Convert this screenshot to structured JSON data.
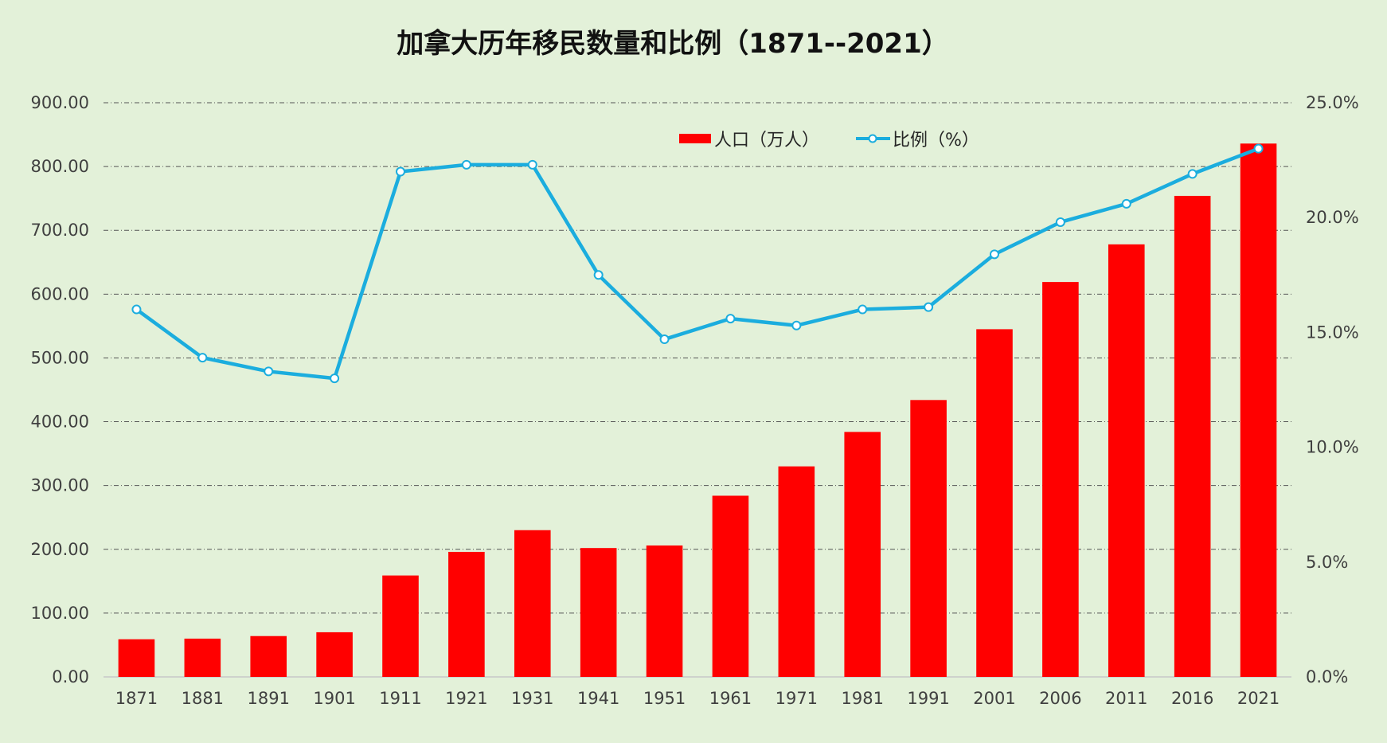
{
  "chart_data": {
    "type": "bar+line",
    "title": "加拿大历年移民数量和比例（1871--2021）",
    "categories": [
      "1871",
      "1881",
      "1891",
      "1901",
      "1911",
      "1921",
      "1931",
      "1941",
      "1951",
      "1961",
      "1971",
      "1981",
      "1991",
      "2001",
      "2006",
      "2011",
      "2016",
      "2021"
    ],
    "series": [
      {
        "name": "人口（万人）",
        "type": "bar",
        "axis": "left",
        "color": "#ff0000",
        "values": [
          59,
          60,
          64,
          70,
          159,
          196,
          230,
          202,
          206,
          284,
          330,
          384,
          434,
          545,
          619,
          678,
          754,
          836
        ]
      },
      {
        "name": "比例（%）",
        "type": "line",
        "axis": "right",
        "color": "#1badde",
        "values": [
          16.0,
          13.9,
          13.3,
          13.0,
          22.0,
          22.3,
          22.3,
          17.5,
          14.7,
          15.6,
          15.3,
          16.0,
          16.1,
          18.4,
          19.8,
          20.6,
          21.9,
          23.0
        ]
      }
    ],
    "y_left": {
      "min": 0,
      "max": 900,
      "step": 100,
      "tick_labels": [
        "0.00",
        "100.00",
        "200.00",
        "300.00",
        "400.00",
        "500.00",
        "600.00",
        "700.00",
        "800.00",
        "900.00"
      ]
    },
    "y_right": {
      "min": 0,
      "max": 25,
      "step": 5,
      "tick_labels": [
        "0.0%",
        "5.0%",
        "10.0%",
        "15.0%",
        "20.0%",
        "25.0%"
      ]
    },
    "grid": true,
    "legend_position": "top-center"
  },
  "colors": {
    "background": "#e3f1d9",
    "bar": "#ff0000",
    "line": "#1badde",
    "grid": "#555555"
  }
}
